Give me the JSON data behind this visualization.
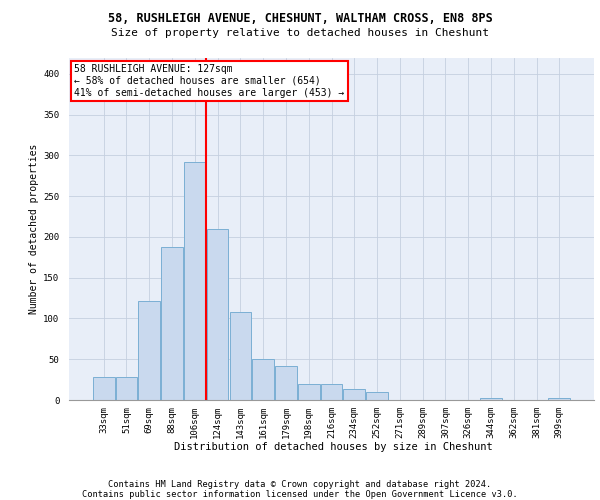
{
  "title1": "58, RUSHLEIGH AVENUE, CHESHUNT, WALTHAM CROSS, EN8 8PS",
  "title2": "Size of property relative to detached houses in Cheshunt",
  "xlabel": "Distribution of detached houses by size in Cheshunt",
  "ylabel": "Number of detached properties",
  "footer1": "Contains HM Land Registry data © Crown copyright and database right 2024.",
  "footer2": "Contains public sector information licensed under the Open Government Licence v3.0.",
  "annotation_title": "58 RUSHLEIGH AVENUE: 127sqm",
  "annotation_line1": "← 58% of detached houses are smaller (654)",
  "annotation_line2": "41% of semi-detached houses are larger (453) →",
  "bar_color": "#c9d9ee",
  "bar_edge_color": "#7bafd4",
  "vline_color": "red",
  "bg_color": "#e8eef8",
  "categories": [
    "33sqm",
    "51sqm",
    "69sqm",
    "88sqm",
    "106sqm",
    "124sqm",
    "143sqm",
    "161sqm",
    "179sqm",
    "198sqm",
    "216sqm",
    "234sqm",
    "252sqm",
    "271sqm",
    "289sqm",
    "307sqm",
    "326sqm",
    "344sqm",
    "362sqm",
    "381sqm",
    "399sqm"
  ],
  "values": [
    28,
    28,
    122,
    188,
    292,
    210,
    108,
    50,
    42,
    20,
    20,
    14,
    10,
    0,
    0,
    0,
    0,
    3,
    0,
    0,
    3
  ],
  "ylim": [
    0,
    420
  ],
  "vline_x": 4.5,
  "grid_color": "#c5cfe0",
  "title1_fontsize": 8.5,
  "title2_fontsize": 8.0,
  "footer_fontsize": 6.2,
  "ylabel_fontsize": 7.0,
  "xlabel_fontsize": 7.5,
  "tick_fontsize": 6.5,
  "annot_fontsize": 7.0
}
